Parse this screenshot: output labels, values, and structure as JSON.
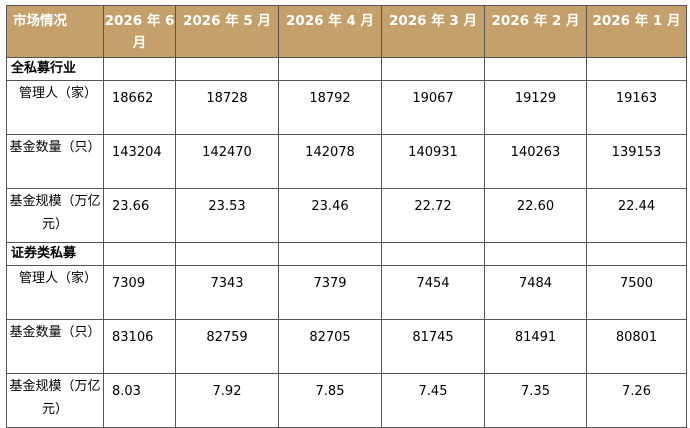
{
  "table": {
    "corner_label": "市场情况",
    "months": [
      "2026 年 6月",
      "2026 年 5 月",
      "2026 年 4 月",
      "2026 年 3 月",
      "2026 年 2 月",
      "2026 年 1 月"
    ],
    "sections": [
      {
        "title": "全私募行业",
        "rows": [
          {
            "metric": "管理人（家）",
            "values": [
              "18662",
              "18728",
              "18792",
              "19067",
              "19129",
              "19163"
            ]
          },
          {
            "metric": "基金数量（只）",
            "values": [
              "143204",
              "142470",
              "142078",
              "140931",
              "140263",
              "139153"
            ]
          },
          {
            "metric": "基金规模（万亿元）",
            "values": [
              "23.66",
              "23.53",
              "23.46",
              "22.72",
              "22.60",
              "22.44"
            ]
          }
        ]
      },
      {
        "title": "证券类私募",
        "rows": [
          {
            "metric": "管理人（家）",
            "values": [
              "7309",
              "7343",
              "7379",
              "7454",
              "7484",
              "7500"
            ]
          },
          {
            "metric": "基金数量（只）",
            "values": [
              "83106",
              "82759",
              "82705",
              "81745",
              "81491",
              "80801"
            ]
          },
          {
            "metric": "基金规模（万亿元）",
            "values": [
              "8.03",
              "7.92",
              "7.85",
              "7.45",
              "7.35",
              "7.26"
            ]
          }
        ]
      }
    ]
  }
}
